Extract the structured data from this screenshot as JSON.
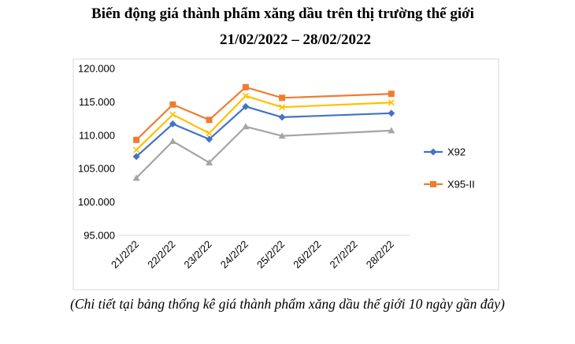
{
  "title_line1": "Biến động giá thành phẩm xăng dầu trên thị trường thế giới",
  "title_line2": "21/02/2022 – 28/02/2022",
  "caption": "(Chi tiết tại bảng thống kê giá thành phẩm xăng dầu thế giới 10 ngày gần đây)",
  "chart_data": {
    "type": "line",
    "categories": [
      "21/2/22",
      "22/2/22",
      "23/2/22",
      "24/2/22",
      "25/2/22",
      "26/2/22",
      "27/2/22",
      "28/2/22"
    ],
    "ylim": [
      95000,
      120000
    ],
    "yticks": [
      95000,
      100000,
      105000,
      110000,
      115000,
      120000
    ],
    "ytick_labels": [
      "95.000",
      "100.000",
      "105.000",
      "110.000",
      "115.000",
      "120.000"
    ],
    "grid": false,
    "legend_position": "right",
    "series": [
      {
        "name": "X92",
        "color": "#4472C4",
        "marker": "diamond",
        "x": [
          0,
          1,
          2,
          3,
          4,
          7
        ],
        "values": [
          106800,
          111700,
          109400,
          114300,
          112700,
          113300
        ]
      },
      {
        "name": "X95-II",
        "color": "#ED7D31",
        "marker": "square",
        "x": [
          0,
          1,
          2,
          3,
          4,
          7
        ],
        "values": [
          109300,
          114600,
          112300,
          117200,
          115600,
          116200
        ]
      },
      {
        "name": "",
        "color": "#FFC000",
        "marker": "x",
        "x": [
          0,
          1,
          2,
          3,
          4,
          7
        ],
        "values": [
          107800,
          113100,
          110300,
          115900,
          114200,
          114900
        ]
      },
      {
        "name": "",
        "color": "#A5A5A5",
        "marker": "triangle",
        "x": [
          0,
          1,
          2,
          3,
          4,
          7
        ],
        "values": [
          103600,
          109100,
          105900,
          111300,
          109900,
          110700
        ]
      }
    ]
  }
}
